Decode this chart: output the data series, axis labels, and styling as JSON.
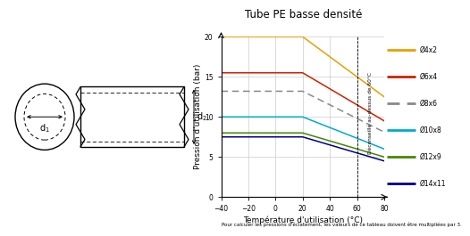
{
  "title": "Tube PE basse densité",
  "ylabel": "Pression d'utilisation (bar)",
  "xlabel": "Température d'utilisation (°C)",
  "footnote": "Pour calculer les pressions d'éclatement, les valeurs de ce tableau doivent être multipliées par 3.",
  "xmin": -40,
  "xmax": 80,
  "ymin": 0,
  "ymax": 20,
  "x_flat_end": 20,
  "x_line_end": 80,
  "vertical_text": "Déconseillé au-dessus de 60°C",
  "series": [
    {
      "label": "Ø4x2",
      "color": "#e8a000",
      "y_flat": 20.0,
      "y_end": 12.5
    },
    {
      "label": "Ø6x4",
      "color": "#cc2200",
      "y_flat": 15.5,
      "y_end": 9.5
    },
    {
      "label": "Ø8x6",
      "color": "#888888",
      "y_flat": 13.2,
      "y_end": 8.1,
      "dashed": true
    },
    {
      "label": "Ø10x8",
      "color": "#00aacc",
      "y_flat": 10.0,
      "y_end": 6.0
    },
    {
      "label": "Ø12x9",
      "color": "#448800",
      "y_flat": 8.0,
      "y_end": 5.0
    },
    {
      "label": "Ø14x11",
      "color": "#000088",
      "y_flat": 7.5,
      "y_end": 4.5
    }
  ],
  "bg_color": "#ffffff",
  "grid_color": "#cccccc"
}
